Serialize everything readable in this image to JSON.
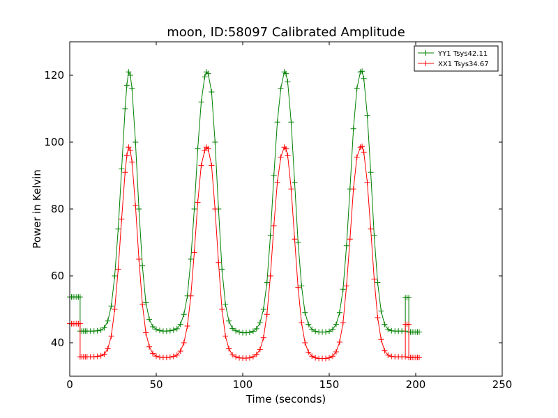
{
  "chart_data": {
    "type": "line",
    "title": "moon, ID:58097 Calibrated Amplitude",
    "xlabel": "Time (seconds)",
    "ylabel": "Power in Kelvin",
    "xlim": [
      0,
      250
    ],
    "ylim": [
      30,
      130
    ],
    "xticks": [
      0,
      50,
      100,
      150,
      200,
      250
    ],
    "yticks": [
      40,
      60,
      80,
      100,
      120
    ],
    "xtick_labels": [
      "0",
      "50",
      "100",
      "150",
      "200",
      "250"
    ],
    "ytick_labels": [
      "40",
      "60",
      "80",
      "100",
      "120"
    ],
    "grid": false,
    "legend_position": "top-right",
    "marker": "+",
    "series": [
      {
        "name": "YY1 Tsys42.11",
        "color": "#008000",
        "points": [
          [
            0,
            53.7
          ],
          [
            1,
            53.7
          ],
          [
            2,
            53.7
          ],
          [
            3,
            53.7
          ],
          [
            4,
            53.7
          ],
          [
            5,
            53.7
          ],
          [
            6,
            53.7
          ],
          [
            6,
            43.5
          ],
          [
            7,
            43.5
          ],
          [
            8,
            43.5
          ],
          [
            9,
            43.5
          ],
          [
            10,
            43.5
          ],
          [
            12,
            43.5
          ],
          [
            14,
            43.5
          ],
          [
            16,
            43.6
          ],
          [
            18,
            43.8
          ],
          [
            20,
            44.5
          ],
          [
            22,
            46.5
          ],
          [
            24,
            51
          ],
          [
            26,
            60
          ],
          [
            28,
            74
          ],
          [
            30,
            92
          ],
          [
            32,
            110
          ],
          [
            33,
            117
          ],
          [
            34,
            121
          ],
          [
            35,
            120
          ],
          [
            36,
            116
          ],
          [
            38,
            100
          ],
          [
            40,
            80
          ],
          [
            42,
            63
          ],
          [
            44,
            52
          ],
          [
            46,
            47
          ],
          [
            48,
            44.8
          ],
          [
            50,
            44
          ],
          [
            52,
            43.7
          ],
          [
            54,
            43.5
          ],
          [
            56,
            43.5
          ],
          [
            58,
            43.6
          ],
          [
            60,
            43.8
          ],
          [
            62,
            44.2
          ],
          [
            64,
            45.5
          ],
          [
            66,
            48.5
          ],
          [
            68,
            54
          ],
          [
            70,
            65
          ],
          [
            72,
            80
          ],
          [
            74,
            98
          ],
          [
            76,
            112
          ],
          [
            78,
            119.5
          ],
          [
            79,
            121
          ],
          [
            80,
            120.5
          ],
          [
            82,
            115
          ],
          [
            84,
            100
          ],
          [
            86,
            80
          ],
          [
            88,
            62
          ],
          [
            90,
            51.5
          ],
          [
            92,
            46.5
          ],
          [
            94,
            44.3
          ],
          [
            96,
            43.6
          ],
          [
            98,
            43.2
          ],
          [
            100,
            43
          ],
          [
            102,
            43
          ],
          [
            104,
            43.1
          ],
          [
            106,
            43.4
          ],
          [
            108,
            44.2
          ],
          [
            110,
            46
          ],
          [
            112,
            50
          ],
          [
            114,
            58
          ],
          [
            116,
            72
          ],
          [
            118,
            90
          ],
          [
            120,
            106
          ],
          [
            122,
            116
          ],
          [
            124,
            121
          ],
          [
            125,
            120.5
          ],
          [
            126,
            118
          ],
          [
            128,
            106
          ],
          [
            130,
            88
          ],
          [
            132,
            70
          ],
          [
            134,
            57
          ],
          [
            136,
            49
          ],
          [
            138,
            45.5
          ],
          [
            140,
            44
          ],
          [
            142,
            43.4
          ],
          [
            144,
            43.2
          ],
          [
            146,
            43.2
          ],
          [
            148,
            43.2
          ],
          [
            150,
            43.4
          ],
          [
            152,
            44
          ],
          [
            154,
            45.5
          ],
          [
            156,
            49
          ],
          [
            158,
            56
          ],
          [
            160,
            69
          ],
          [
            162,
            86
          ],
          [
            164,
            104
          ],
          [
            166,
            116
          ],
          [
            168,
            121
          ],
          [
            169,
            121.2
          ],
          [
            170,
            119
          ],
          [
            172,
            108
          ],
          [
            174,
            91
          ],
          [
            176,
            72
          ],
          [
            178,
            58
          ],
          [
            180,
            49.5
          ],
          [
            182,
            45.5
          ],
          [
            184,
            44
          ],
          [
            186,
            43.6
          ],
          [
            188,
            43.5
          ],
          [
            190,
            43.5
          ],
          [
            192,
            43.5
          ],
          [
            194,
            43.5
          ],
          [
            194,
            53.5
          ],
          [
            195,
            53.5
          ],
          [
            196,
            53.5
          ],
          [
            196,
            43.2
          ],
          [
            197,
            43.2
          ],
          [
            198,
            43.2
          ],
          [
            199,
            43.2
          ],
          [
            200,
            43.2
          ],
          [
            201,
            43.2
          ],
          [
            202,
            43.2
          ]
        ]
      },
      {
        "name": "XX1 Tsys34.67",
        "color": "#ff0000",
        "points": [
          [
            0,
            45.7
          ],
          [
            1,
            45.7
          ],
          [
            2,
            45.7
          ],
          [
            3,
            45.7
          ],
          [
            4,
            45.7
          ],
          [
            5,
            45.7
          ],
          [
            6,
            45.7
          ],
          [
            6,
            35.8
          ],
          [
            7,
            35.8
          ],
          [
            8,
            35.8
          ],
          [
            9,
            35.8
          ],
          [
            10,
            35.8
          ],
          [
            12,
            35.8
          ],
          [
            14,
            35.8
          ],
          [
            16,
            35.9
          ],
          [
            18,
            36.1
          ],
          [
            20,
            36.6
          ],
          [
            22,
            38.2
          ],
          [
            24,
            42
          ],
          [
            26,
            50
          ],
          [
            28,
            62
          ],
          [
            30,
            77
          ],
          [
            32,
            91
          ],
          [
            33,
            96
          ],
          [
            34,
            98.5
          ],
          [
            35,
            97.5
          ],
          [
            36,
            94
          ],
          [
            38,
            81
          ],
          [
            40,
            65
          ],
          [
            42,
            51.5
          ],
          [
            44,
            43
          ],
          [
            46,
            38.8
          ],
          [
            48,
            36.8
          ],
          [
            50,
            36
          ],
          [
            52,
            35.7
          ],
          [
            54,
            35.6
          ],
          [
            56,
            35.6
          ],
          [
            58,
            35.7
          ],
          [
            60,
            35.9
          ],
          [
            62,
            36.3
          ],
          [
            64,
            37.5
          ],
          [
            66,
            40
          ],
          [
            68,
            45
          ],
          [
            70,
            54
          ],
          [
            72,
            67
          ],
          [
            74,
            82
          ],
          [
            76,
            93
          ],
          [
            78,
            97.5
          ],
          [
            79,
            98.5
          ],
          [
            80,
            98
          ],
          [
            82,
            93
          ],
          [
            84,
            80
          ],
          [
            86,
            64
          ],
          [
            88,
            50
          ],
          [
            90,
            42
          ],
          [
            92,
            38.2
          ],
          [
            94,
            36.4
          ],
          [
            96,
            35.8
          ],
          [
            98,
            35.5
          ],
          [
            100,
            35.4
          ],
          [
            102,
            35.4
          ],
          [
            104,
            35.5
          ],
          [
            106,
            35.8
          ],
          [
            108,
            36.5
          ],
          [
            110,
            38
          ],
          [
            112,
            41.5
          ],
          [
            114,
            48.5
          ],
          [
            116,
            60
          ],
          [
            118,
            75
          ],
          [
            120,
            88
          ],
          [
            122,
            95.5
          ],
          [
            124,
            98.5
          ],
          [
            125,
            98
          ],
          [
            126,
            96
          ],
          [
            128,
            86
          ],
          [
            130,
            71
          ],
          [
            132,
            56.5
          ],
          [
            134,
            46
          ],
          [
            136,
            40
          ],
          [
            138,
            37.2
          ],
          [
            140,
            36
          ],
          [
            142,
            35.5
          ],
          [
            144,
            35.3
          ],
          [
            146,
            35.3
          ],
          [
            148,
            35.3
          ],
          [
            150,
            35.5
          ],
          [
            152,
            36
          ],
          [
            154,
            37.3
          ],
          [
            156,
            40.2
          ],
          [
            158,
            46
          ],
          [
            160,
            57
          ],
          [
            162,
            71
          ],
          [
            164,
            86
          ],
          [
            166,
            95.5
          ],
          [
            168,
            98.5
          ],
          [
            169,
            98.7
          ],
          [
            170,
            97
          ],
          [
            172,
            88
          ],
          [
            174,
            74
          ],
          [
            176,
            59
          ],
          [
            178,
            47.5
          ],
          [
            180,
            41
          ],
          [
            182,
            37.6
          ],
          [
            184,
            36.3
          ],
          [
            186,
            35.9
          ],
          [
            188,
            35.8
          ],
          [
            190,
            35.8
          ],
          [
            192,
            35.8
          ],
          [
            194,
            35.8
          ],
          [
            194,
            45.5
          ],
          [
            195,
            45.5
          ],
          [
            196,
            45.5
          ],
          [
            196,
            35.6
          ],
          [
            197,
            35.6
          ],
          [
            198,
            35.6
          ],
          [
            199,
            35.6
          ],
          [
            200,
            35.6
          ],
          [
            201,
            35.6
          ],
          [
            202,
            35.6
          ]
        ]
      }
    ]
  }
}
